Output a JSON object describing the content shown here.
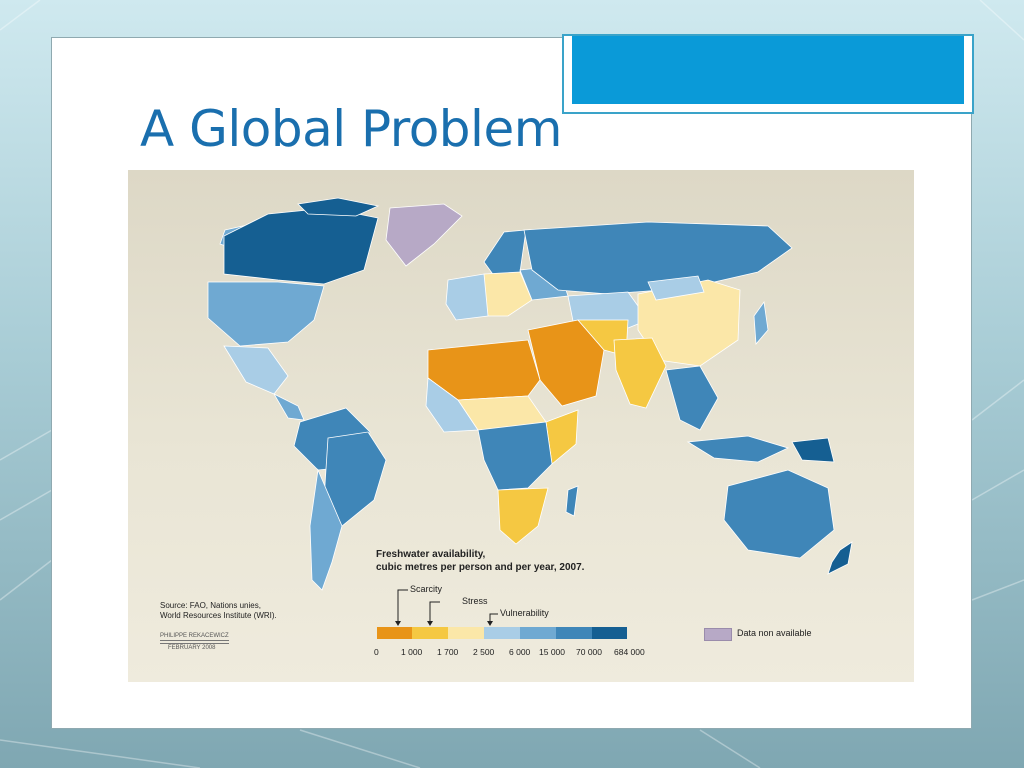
{
  "slide": {
    "title": "A Global Problem"
  },
  "map": {
    "legend_title_line1": "Freshwater availability,",
    "legend_title_line2": "cubic metres per person and per year, 2007.",
    "thresholds": {
      "scarcity": "Scarcity",
      "stress": "Stress",
      "vulnerability": "Vulnerability"
    },
    "scale_ticks": [
      "0",
      "1 000",
      "1 700",
      "2 500",
      "6 000",
      "15 000",
      "70 000",
      "684 000"
    ],
    "scale_colors": [
      "#e89418",
      "#f5c842",
      "#fbe7a8",
      "#a9cde6",
      "#6fa9d2",
      "#3f86b8",
      "#155f92"
    ],
    "no_data_label": "Data non available",
    "no_data_color": "#b7a9c6",
    "source_line1": "Source: FAO, Nations unies,",
    "source_line2": "World Resources Institute (WRI).",
    "credit_line1": "PHILIPPE REKACEWICZ",
    "credit_line2": "FEBRUARY 2008"
  },
  "colors": {
    "title": "#1a6fae",
    "accent_tab": "#0a9ad8"
  }
}
